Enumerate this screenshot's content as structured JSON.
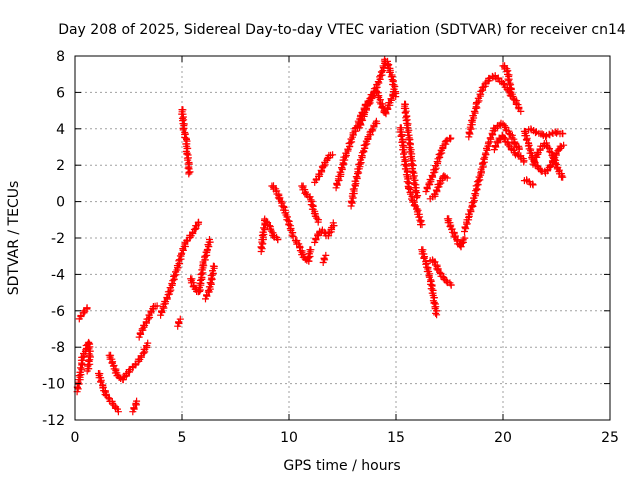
{
  "chart_data": {
    "type": "scatter",
    "title": "Day 208 of 2025, Sidereal Day-to-day VTEC variation (SDTVAR) for receiver cn14",
    "xlabel": "GPS time / hours",
    "ylabel": "SDTVAR / TECUs",
    "xlim": [
      0,
      25
    ],
    "ylim": [
      -12,
      8
    ],
    "xticks": [
      0,
      5,
      10,
      15,
      20,
      25
    ],
    "yticks": [
      -12,
      -10,
      -8,
      -6,
      -4,
      -2,
      0,
      2,
      4,
      6,
      8
    ],
    "grid": true,
    "marker": "+",
    "series": [
      {
        "name": "SDTVAR",
        "color": "#ff0000",
        "segments": [
          [
            [
              0.2,
              -6.4
            ],
            [
              0.4,
              -6.1
            ],
            [
              0.6,
              -5.8
            ]
          ],
          [
            [
              0.1,
              -10.4
            ],
            [
              0.25,
              -9.5
            ],
            [
              0.35,
              -8.6
            ],
            [
              0.5,
              -8.1
            ],
            [
              0.65,
              -7.7
            ],
            [
              0.7,
              -8.5
            ],
            [
              0.6,
              -9.3
            ]
          ],
          [
            [
              1.1,
              -9.4
            ],
            [
              1.3,
              -10.2
            ],
            [
              1.5,
              -10.7
            ],
            [
              1.7,
              -11.0
            ],
            [
              1.9,
              -11.3
            ],
            [
              2.0,
              -11.5
            ]
          ],
          [
            [
              1.6,
              -8.4
            ],
            [
              1.8,
              -9.0
            ],
            [
              2.0,
              -9.6
            ],
            [
              2.2,
              -9.8
            ],
            [
              2.4,
              -9.5
            ],
            [
              2.6,
              -9.2
            ],
            [
              2.8,
              -9.0
            ],
            [
              3.0,
              -8.7
            ],
            [
              3.2,
              -8.3
            ],
            [
              3.4,
              -7.8
            ]
          ],
          [
            [
              2.7,
              -11.5
            ],
            [
              2.9,
              -11.0
            ]
          ],
          [
            [
              3.0,
              -7.4
            ],
            [
              3.2,
              -6.9
            ],
            [
              3.4,
              -6.5
            ],
            [
              3.6,
              -5.9
            ],
            [
              3.8,
              -5.7
            ]
          ],
          [
            [
              4.0,
              -6.2
            ],
            [
              4.2,
              -5.6
            ],
            [
              4.4,
              -5.0
            ],
            [
              4.6,
              -4.3
            ],
            [
              4.8,
              -3.6
            ],
            [
              5.0,
              -2.8
            ],
            [
              5.2,
              -2.2
            ],
            [
              5.4,
              -1.9
            ],
            [
              5.6,
              -1.5
            ],
            [
              5.8,
              -1.1
            ]
          ],
          [
            [
              4.8,
              -6.8
            ],
            [
              4.9,
              -6.5
            ]
          ],
          [
            [
              5.0,
              5.1
            ],
            [
              5.05,
              4.5
            ],
            [
              5.1,
              3.9
            ],
            [
              5.2,
              3.3
            ],
            [
              5.25,
              2.7
            ],
            [
              5.3,
              2.1
            ],
            [
              5.35,
              1.5
            ]
          ],
          [
            [
              5.4,
              -4.2
            ],
            [
              5.6,
              -4.8
            ],
            [
              5.8,
              -5.0
            ],
            [
              5.9,
              -4.2
            ],
            [
              6.0,
              -3.4
            ],
            [
              6.2,
              -2.6
            ],
            [
              6.3,
              -2.1
            ]
          ],
          [
            [
              6.1,
              -5.3
            ],
            [
              6.3,
              -4.8
            ],
            [
              6.4,
              -4.1
            ],
            [
              6.5,
              -3.5
            ]
          ],
          [
            [
              8.7,
              -2.7
            ],
            [
              8.8,
              -1.8
            ],
            [
              8.9,
              -1.0
            ],
            [
              9.1,
              -1.4
            ],
            [
              9.3,
              -1.9
            ],
            [
              9.5,
              -2.1
            ]
          ],
          [
            [
              9.2,
              0.9
            ],
            [
              9.4,
              0.6
            ],
            [
              9.6,
              0.1
            ],
            [
              9.8,
              -0.5
            ],
            [
              10.0,
              -1.2
            ],
            [
              10.2,
              -1.9
            ]
          ],
          [
            [
              10.3,
              -2.1
            ],
            [
              10.5,
              -2.5
            ],
            [
              10.7,
              -3.1
            ],
            [
              10.9,
              -3.3
            ],
            [
              11.0,
              -2.6
            ]
          ],
          [
            [
              10.6,
              0.9
            ],
            [
              10.8,
              0.4
            ],
            [
              11.0,
              0.2
            ],
            [
              11.2,
              -0.7
            ],
            [
              11.4,
              -1.1
            ]
          ],
          [
            [
              11.2,
              -2.2
            ],
            [
              11.4,
              -1.7
            ],
            [
              11.6,
              -1.6
            ],
            [
              11.8,
              -1.9
            ],
            [
              12.0,
              -1.5
            ],
            [
              12.1,
              -1.2
            ]
          ],
          [
            [
              11.2,
              1.1
            ],
            [
              11.4,
              1.4
            ],
            [
              11.6,
              1.9
            ],
            [
              11.8,
              2.4
            ],
            [
              12.0,
              2.6
            ]
          ],
          [
            [
              11.6,
              -3.3
            ],
            [
              11.7,
              -3.0
            ]
          ],
          [
            [
              12.2,
              0.8
            ],
            [
              12.4,
              1.5
            ],
            [
              12.6,
              2.4
            ],
            [
              12.8,
              3.0
            ],
            [
              13.0,
              3.7
            ],
            [
              13.2,
              4.2
            ],
            [
              13.4,
              4.8
            ],
            [
              13.6,
              5.3
            ],
            [
              13.8,
              5.7
            ],
            [
              14.0,
              6.1
            ],
            [
              14.2,
              6.6
            ],
            [
              14.4,
              7.3
            ],
            [
              14.5,
              7.8
            ],
            [
              14.6,
              7.6
            ],
            [
              14.8,
              6.9
            ],
            [
              15.0,
              5.8
            ]
          ],
          [
            [
              12.9,
              -0.2
            ],
            [
              13.1,
              1.0
            ],
            [
              13.3,
              2.0
            ],
            [
              13.5,
              2.9
            ],
            [
              13.7,
              3.5
            ],
            [
              13.9,
              4.0
            ],
            [
              14.1,
              4.4
            ]
          ],
          [
            [
              13.3,
              4.1
            ],
            [
              13.5,
              4.8
            ],
            [
              13.7,
              5.3
            ],
            [
              13.9,
              5.8
            ],
            [
              14.1,
              6.1
            ],
            [
              14.3,
              5.4
            ],
            [
              14.5,
              4.8
            ],
            [
              14.7,
              5.4
            ],
            [
              14.9,
              6.0
            ]
          ],
          [
            [
              15.2,
              4.1
            ],
            [
              15.3,
              3.3
            ],
            [
              15.4,
              2.4
            ],
            [
              15.5,
              1.6
            ],
            [
              15.6,
              0.8
            ],
            [
              15.8,
              0.0
            ],
            [
              16.0,
              -0.5
            ],
            [
              16.1,
              -0.9
            ],
            [
              16.2,
              -1.3
            ]
          ],
          [
            [
              15.4,
              5.4
            ],
            [
              15.5,
              4.5
            ],
            [
              15.6,
              3.6
            ],
            [
              15.7,
              2.6
            ],
            [
              15.8,
              1.7
            ],
            [
              15.9,
              0.8
            ],
            [
              16.0,
              0.2
            ]
          ],
          [
            [
              16.2,
              -2.6
            ],
            [
              16.4,
              -3.4
            ],
            [
              16.6,
              -4.2
            ],
            [
              16.7,
              -4.9
            ],
            [
              16.8,
              -5.5
            ],
            [
              16.9,
              -6.2
            ]
          ],
          [
            [
              16.6,
              -3.2
            ],
            [
              16.8,
              -3.3
            ],
            [
              17.0,
              -3.8
            ],
            [
              17.2,
              -4.2
            ],
            [
              17.4,
              -4.4
            ],
            [
              17.6,
              -4.6
            ]
          ],
          [
            [
              16.4,
              0.6
            ],
            [
              16.6,
              1.1
            ],
            [
              16.8,
              1.7
            ],
            [
              17.0,
              2.4
            ],
            [
              17.2,
              3.0
            ],
            [
              17.4,
              3.4
            ],
            [
              17.6,
              3.5
            ]
          ],
          [
            [
              16.6,
              0.2
            ],
            [
              16.8,
              0.3
            ],
            [
              17.0,
              0.9
            ],
            [
              17.2,
              1.4
            ],
            [
              17.4,
              1.3
            ]
          ],
          [
            [
              17.4,
              -0.9
            ],
            [
              17.6,
              -1.5
            ],
            [
              17.8,
              -2.0
            ],
            [
              18.0,
              -2.5
            ],
            [
              18.2,
              -2.0
            ]
          ],
          [
            [
              18.2,
              -1.6
            ],
            [
              18.4,
              -0.8
            ],
            [
              18.6,
              -0.1
            ],
            [
              18.8,
              0.9
            ],
            [
              19.0,
              1.7
            ],
            [
              19.2,
              2.7
            ],
            [
              19.4,
              3.4
            ],
            [
              19.6,
              4.0
            ],
            [
              19.8,
              4.2
            ],
            [
              20.0,
              4.3
            ],
            [
              20.2,
              3.9
            ],
            [
              20.4,
              3.6
            ],
            [
              20.6,
              3.1
            ],
            [
              20.8,
              2.9
            ]
          ],
          [
            [
              18.4,
              3.6
            ],
            [
              18.6,
              4.6
            ],
            [
              18.8,
              5.4
            ],
            [
              19.0,
              6.1
            ],
            [
              19.2,
              6.5
            ],
            [
              19.4,
              6.8
            ],
            [
              19.6,
              6.9
            ],
            [
              19.8,
              6.7
            ],
            [
              20.0,
              6.5
            ],
            [
              20.2,
              6.2
            ],
            [
              20.4,
              5.8
            ],
            [
              20.6,
              5.5
            ],
            [
              20.8,
              5.0
            ]
          ],
          [
            [
              19.6,
              2.9
            ],
            [
              19.8,
              3.4
            ],
            [
              20.0,
              3.6
            ],
            [
              20.2,
              3.2
            ],
            [
              20.4,
              2.9
            ],
            [
              20.6,
              2.6
            ],
            [
              20.8,
              2.5
            ],
            [
              21.0,
              2.2
            ]
          ],
          [
            [
              20.0,
              7.5
            ],
            [
              20.2,
              7.2
            ],
            [
              20.3,
              6.6
            ],
            [
              20.4,
              5.9
            ]
          ],
          [
            [
              21.0,
              3.9
            ],
            [
              21.2,
              3.1
            ],
            [
              21.4,
              2.3
            ],
            [
              21.6,
              1.9
            ],
            [
              21.8,
              1.7
            ],
            [
              22.0,
              1.6
            ],
            [
              22.2,
              1.9
            ],
            [
              22.4,
              2.4
            ],
            [
              22.6,
              2.9
            ],
            [
              22.8,
              3.1
            ]
          ],
          [
            [
              21.2,
              4.0
            ],
            [
              21.4,
              3.9
            ],
            [
              21.6,
              3.8
            ],
            [
              21.8,
              3.7
            ],
            [
              22.0,
              3.6
            ],
            [
              22.2,
              3.7
            ],
            [
              22.4,
              3.8
            ],
            [
              22.6,
              3.8
            ],
            [
              22.8,
              3.7
            ]
          ],
          [
            [
              21.4,
              2.1
            ],
            [
              21.6,
              2.6
            ],
            [
              21.8,
              3.0
            ],
            [
              22.0,
              3.2
            ],
            [
              22.2,
              2.8
            ],
            [
              22.4,
              2.3
            ],
            [
              22.6,
              1.7
            ],
            [
              22.8,
              1.3
            ]
          ],
          [
            [
              21.0,
              1.2
            ],
            [
              21.2,
              1.1
            ],
            [
              21.4,
              0.9
            ]
          ]
        ]
      }
    ]
  }
}
